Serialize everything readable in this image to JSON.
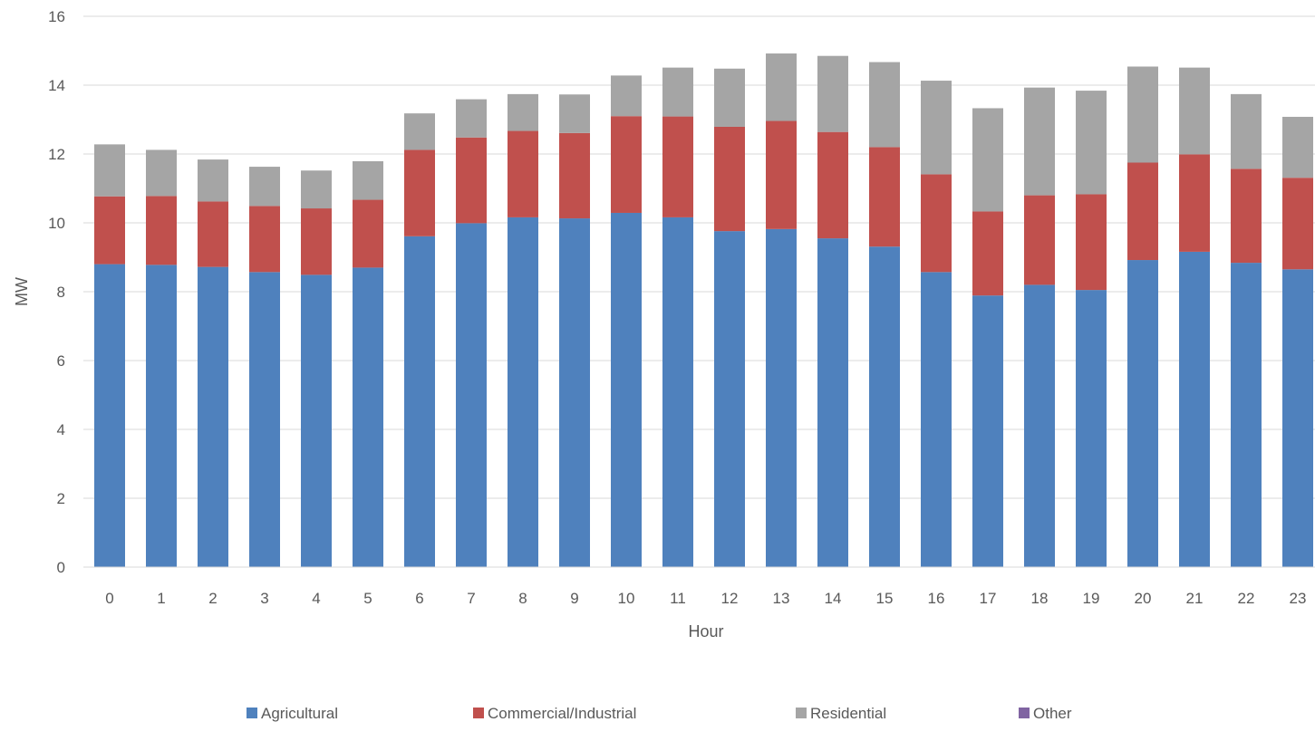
{
  "chart_data": {
    "type": "bar",
    "stacked": true,
    "title": "",
    "xlabel": "Hour",
    "ylabel": "MW",
    "ylim": [
      0,
      16
    ],
    "yticks": [
      0,
      2,
      4,
      6,
      8,
      10,
      12,
      14,
      16
    ],
    "grid": true,
    "legend_position": "bottom",
    "categories": [
      "0",
      "1",
      "2",
      "3",
      "4",
      "5",
      "6",
      "7",
      "8",
      "9",
      "10",
      "11",
      "12",
      "13",
      "14",
      "15",
      "16",
      "17",
      "18",
      "19",
      "20",
      "21",
      "22",
      "23"
    ],
    "series": [
      {
        "name": "Agricultural",
        "color": "#4F81BD",
        "values": [
          8.8,
          8.78,
          8.72,
          8.57,
          8.49,
          8.7,
          9.61,
          9.99,
          10.16,
          10.13,
          10.29,
          10.16,
          9.76,
          9.82,
          9.55,
          9.31,
          8.57,
          7.89,
          8.2,
          8.05,
          8.92,
          9.16,
          8.84,
          8.65
        ]
      },
      {
        "name": "Commercial/Industrial",
        "color": "#C0504D",
        "values": [
          1.97,
          2.0,
          1.9,
          1.92,
          1.93,
          1.97,
          2.51,
          2.49,
          2.51,
          2.48,
          2.81,
          2.93,
          3.03,
          3.14,
          3.09,
          2.89,
          2.84,
          2.44,
          2.6,
          2.78,
          2.83,
          2.83,
          2.73,
          2.66
        ]
      },
      {
        "name": "Residential",
        "color": "#A5A5A5",
        "values": [
          1.51,
          1.34,
          1.22,
          1.14,
          1.1,
          1.12,
          1.06,
          1.11,
          1.07,
          1.12,
          1.18,
          1.42,
          1.69,
          1.96,
          2.21,
          2.47,
          2.72,
          3.0,
          3.13,
          3.01,
          2.79,
          2.52,
          2.17,
          1.77
        ]
      },
      {
        "name": "Other",
        "color": "#8064A2",
        "values": [
          0,
          0,
          0,
          0,
          0,
          0,
          0,
          0,
          0,
          0,
          0,
          0,
          0,
          0,
          0,
          0,
          0,
          0,
          0,
          0,
          0,
          0,
          0,
          0
        ]
      }
    ]
  }
}
